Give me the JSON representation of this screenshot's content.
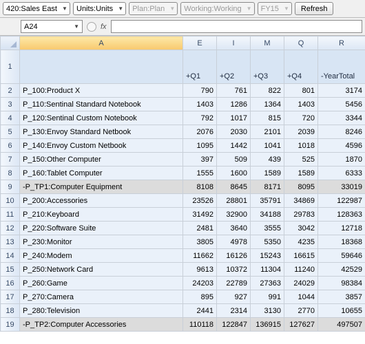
{
  "toolbar": {
    "pov": [
      {
        "label": "420:Sales East",
        "enabled": true
      },
      {
        "label": "Units:Units",
        "enabled": true
      },
      {
        "label": "Plan:Plan",
        "enabled": false
      },
      {
        "label": "Working:Working",
        "enabled": false
      },
      {
        "label": "FY15",
        "enabled": false
      }
    ],
    "refresh_label": "Refresh",
    "name_box": "A24",
    "fx_label": "fx"
  },
  "columns": [
    {
      "letter": "A",
      "sub": "",
      "selected": true
    },
    {
      "letter": "E",
      "sub": "+Q1",
      "selected": false
    },
    {
      "letter": "I",
      "sub": "+Q2",
      "selected": false
    },
    {
      "letter": "M",
      "sub": "+Q3",
      "selected": false
    },
    {
      "letter": "Q",
      "sub": "+Q4",
      "selected": false
    },
    {
      "letter": "R",
      "sub": "-YearTotal",
      "selected": false
    }
  ],
  "rows": [
    {
      "n": 2,
      "label": "  P_100:Product X",
      "v": [
        790,
        761,
        822,
        801,
        3174
      ],
      "tot": false
    },
    {
      "n": 3,
      "label": "  P_110:Sentinal Standard Notebook",
      "v": [
        1403,
        1286,
        1364,
        1403,
        5456
      ],
      "tot": false
    },
    {
      "n": 4,
      "label": "  P_120:Sentinal Custom Notebook",
      "v": [
        792,
        1017,
        815,
        720,
        3344
      ],
      "tot": false
    },
    {
      "n": 5,
      "label": "  P_130:Envoy Standard Netbook",
      "v": [
        2076,
        2030,
        2101,
        2039,
        8246
      ],
      "tot": false
    },
    {
      "n": 6,
      "label": "  P_140:Envoy Custom Netbook",
      "v": [
        1095,
        1442,
        1041,
        1018,
        4596
      ],
      "tot": false
    },
    {
      "n": 7,
      "label": "  P_150:Other Computer",
      "v": [
        397,
        509,
        439,
        525,
        1870
      ],
      "tot": false
    },
    {
      "n": 8,
      "label": "  P_160:Tablet Computer",
      "v": [
        1555,
        1600,
        1589,
        1589,
        6333
      ],
      "tot": false
    },
    {
      "n": 9,
      "label": " -P_TP1:Computer Equipment",
      "v": [
        8108,
        8645,
        8171,
        8095,
        33019
      ],
      "tot": true
    },
    {
      "n": 10,
      "label": "  P_200:Accessories",
      "v": [
        23526,
        28801,
        35791,
        34869,
        122987
      ],
      "tot": false
    },
    {
      "n": 11,
      "label": "  P_210:Keyboard",
      "v": [
        31492,
        32900,
        34188,
        29783,
        128363
      ],
      "tot": false
    },
    {
      "n": 12,
      "label": "  P_220:Software Suite",
      "v": [
        2481,
        3640,
        3555,
        3042,
        12718
      ],
      "tot": false
    },
    {
      "n": 13,
      "label": "  P_230:Monitor",
      "v": [
        3805,
        4978,
        5350,
        4235,
        18368
      ],
      "tot": false
    },
    {
      "n": 14,
      "label": "  P_240:Modem",
      "v": [
        11662,
        16126,
        15243,
        16615,
        59646
      ],
      "tot": false
    },
    {
      "n": 15,
      "label": "  P_250:Network Card",
      "v": [
        9613,
        10372,
        11304,
        11240,
        42529
      ],
      "tot": false
    },
    {
      "n": 16,
      "label": "  P_260:Game",
      "v": [
        24203,
        22789,
        27363,
        24029,
        98384
      ],
      "tot": false
    },
    {
      "n": 17,
      "label": "  P_270:Camera",
      "v": [
        895,
        927,
        991,
        1044,
        3857
      ],
      "tot": false
    },
    {
      "n": 18,
      "label": "  P_280:Television",
      "v": [
        2441,
        2314,
        3130,
        2770,
        10655
      ],
      "tot": false
    },
    {
      "n": 19,
      "label": " -P_TP2:Computer Accessories",
      "v": [
        110118,
        122847,
        136915,
        127627,
        497507
      ],
      "tot": true
    }
  ],
  "style": {
    "header_bg": "#d8e5f4",
    "cell_bg": "#eaf1fa",
    "total_bg": "#dcdcdc",
    "border": "#c8cfd8"
  }
}
